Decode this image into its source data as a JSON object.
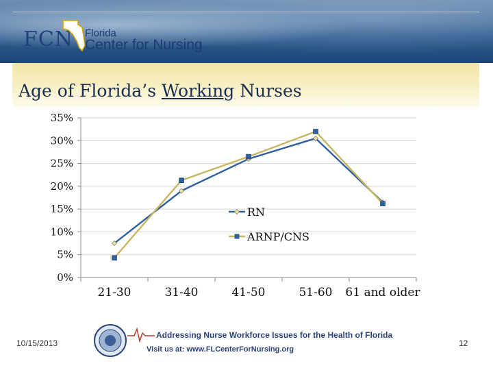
{
  "header": {
    "logo_abbrev": "FCN",
    "logo_line1": "Florida",
    "logo_line2": "Center for Nursing",
    "brand_color": "#1d3b73"
  },
  "slide": {
    "title_before": "Age of Florida’s ",
    "title_underlined": "Working",
    "title_after": " Nurses"
  },
  "chart_data": {
    "type": "line",
    "categories": [
      "21-30",
      "31-40",
      "41-50",
      "51-60",
      "61 and older"
    ],
    "series": [
      {
        "name": "RN",
        "values": [
          7.5,
          19.0,
          26.0,
          30.5,
          16.5
        ],
        "color": "#2f5f9e"
      },
      {
        "name": "ARNP/CNS",
        "values": [
          4.3,
          21.3,
          26.5,
          32.0,
          16.2
        ],
        "color": "#c8b560"
      }
    ],
    "y_tick_labels": [
      "35%",
      "30%",
      "25%",
      "20%",
      "15%",
      "10%",
      "5%",
      "0%"
    ],
    "ylim": [
      0,
      35
    ],
    "y_step": 5,
    "grid": "horizontal",
    "legend_position": "center-right",
    "title": "",
    "xlabel": "",
    "ylabel": ""
  },
  "footer": {
    "date": "10/15/2013",
    "page_number": "12",
    "tagline": "Addressing Nurse Workforce Issues for the Health of Florida",
    "url_text": "Visit us at: www.FLCenterForNursing.org"
  }
}
